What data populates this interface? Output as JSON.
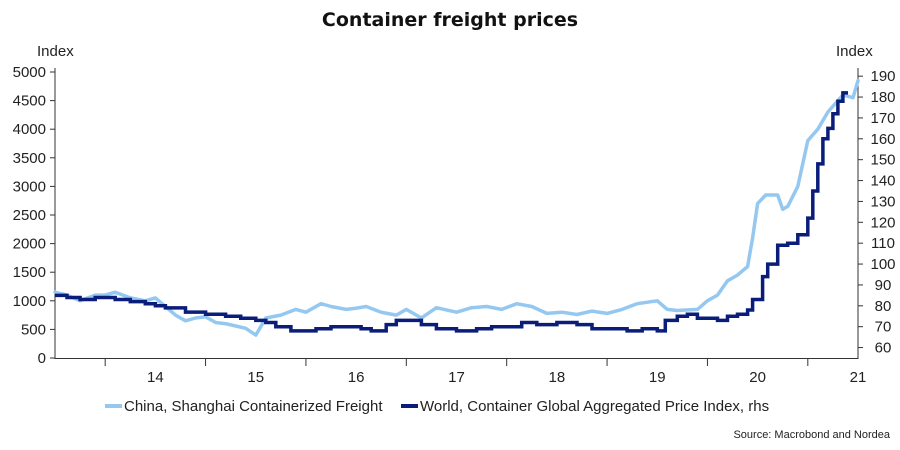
{
  "chart_data": {
    "type": "line",
    "title": "Container freight prices",
    "ylabel_left": "Index",
    "ylabel_right": "Index",
    "source": "Source: Macrobond and Nordea",
    "x_tick_labels": [
      "14",
      "15",
      "16",
      "17",
      "18",
      "19",
      "20",
      "21"
    ],
    "x_tick_years": [
      2014,
      2015,
      2016,
      2017,
      2018,
      2019,
      2020,
      2021
    ],
    "xlim": [
      2013.5,
      2021.5
    ],
    "ylim_left": [
      0,
      5000
    ],
    "yticks_left": [
      0,
      500,
      1000,
      1500,
      2000,
      2500,
      3000,
      3500,
      4000,
      4500,
      5000
    ],
    "ylim_right": [
      55,
      192
    ],
    "yticks_right": [
      60,
      70,
      80,
      90,
      100,
      110,
      120,
      130,
      140,
      150,
      160,
      170,
      180,
      190
    ],
    "colors": {
      "china": "#95c8f0",
      "world": "#0a1d7a"
    },
    "series": [
      {
        "name": "China, Shanghai Containerized Freight",
        "axis": "left",
        "x": [
          2013.5,
          2013.62,
          2013.75,
          2013.9,
          2014.0,
          2014.1,
          2014.25,
          2014.4,
          2014.5,
          2014.6,
          2014.7,
          2014.8,
          2014.9,
          2015.0,
          2015.1,
          2015.2,
          2015.3,
          2015.4,
          2015.5,
          2015.6,
          2015.75,
          2015.9,
          2016.0,
          2016.15,
          2016.25,
          2016.4,
          2016.5,
          2016.6,
          2016.75,
          2016.9,
          2017.0,
          2017.15,
          2017.3,
          2017.5,
          2017.65,
          2017.8,
          2017.95,
          2018.1,
          2018.25,
          2018.4,
          2018.55,
          2018.7,
          2018.85,
          2019.0,
          2019.15,
          2019.3,
          2019.5,
          2019.6,
          2019.7,
          2019.9,
          2020.0,
          2020.1,
          2020.2,
          2020.3,
          2020.4,
          2020.45,
          2020.5,
          2020.58,
          2020.7,
          2020.75,
          2020.8,
          2020.9,
          2021.0,
          2021.1,
          2021.2,
          2021.3,
          2021.35,
          2021.45,
          2021.5
        ],
        "values": [
          1150,
          1100,
          1000,
          1100,
          1100,
          1150,
          1050,
          1000,
          1050,
          900,
          750,
          650,
          700,
          720,
          620,
          600,
          560,
          520,
          400,
          700,
          750,
          850,
          800,
          950,
          900,
          850,
          870,
          900,
          800,
          750,
          850,
          700,
          880,
          800,
          880,
          900,
          850,
          950,
          900,
          780,
          800,
          760,
          820,
          780,
          850,
          950,
          1000,
          850,
          830,
          850,
          1000,
          1100,
          1350,
          1450,
          1600,
          2100,
          2700,
          2850,
          2850,
          2600,
          2650,
          3000,
          3800,
          4000,
          4300,
          4500,
          4600,
          4550,
          4850
        ]
      },
      {
        "name": "World, Container Global Aggregated Price Index, rhs",
        "axis": "right",
        "x": [
          2013.5,
          2013.62,
          2013.75,
          2013.9,
          2014.0,
          2014.1,
          2014.25,
          2014.4,
          2014.5,
          2014.6,
          2014.8,
          2015.0,
          2015.2,
          2015.35,
          2015.5,
          2015.6,
          2015.7,
          2015.85,
          2016.0,
          2016.1,
          2016.25,
          2016.4,
          2016.55,
          2016.65,
          2016.8,
          2016.9,
          2017.0,
          2017.15,
          2017.3,
          2017.5,
          2017.7,
          2017.85,
          2018.0,
          2018.15,
          2018.3,
          2018.5,
          2018.7,
          2018.85,
          2019.0,
          2019.2,
          2019.35,
          2019.5,
          2019.58,
          2019.7,
          2019.8,
          2019.9,
          2020.0,
          2020.1,
          2020.2,
          2020.3,
          2020.4,
          2020.45,
          2020.55,
          2020.6,
          2020.7,
          2020.8,
          2020.9,
          2021.0,
          2021.05,
          2021.1,
          2021.15,
          2021.2,
          2021.25,
          2021.3,
          2021.35,
          2021.4
        ],
        "values": [
          85,
          84,
          83,
          84,
          84,
          83,
          82,
          81,
          80,
          79,
          77,
          76,
          75,
          74,
          73,
          72,
          70,
          68,
          68,
          69,
          70,
          70,
          69,
          68,
          71,
          73,
          73,
          71,
          69,
          68,
          69,
          70,
          70,
          72,
          71,
          72,
          71,
          69,
          69,
          68,
          69,
          68,
          73,
          75,
          76,
          74,
          74,
          73,
          75,
          76,
          78,
          83,
          94,
          100,
          109,
          110,
          114,
          122,
          135,
          148,
          160,
          165,
          172,
          178,
          182,
          182
        ]
      }
    ]
  }
}
